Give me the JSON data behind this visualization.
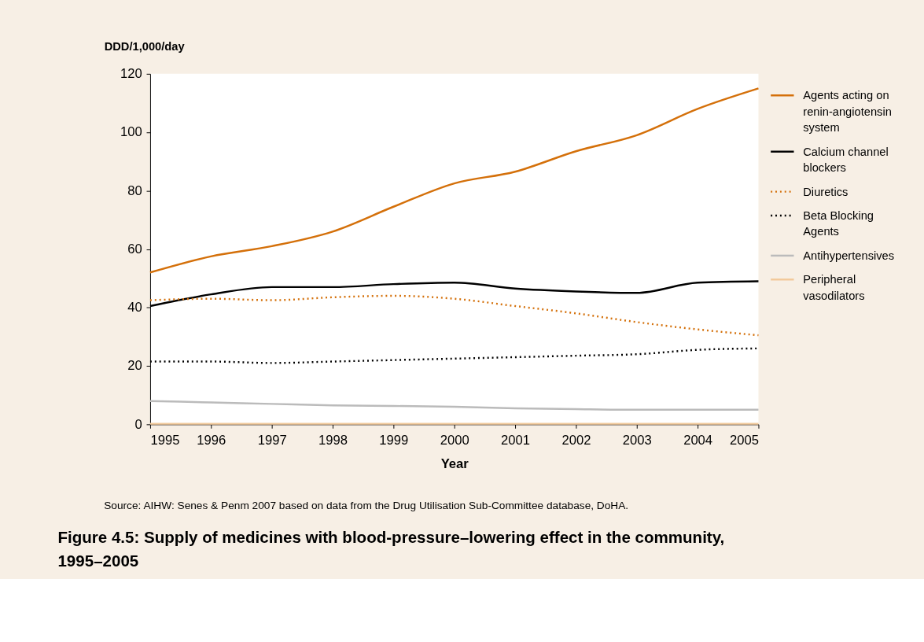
{
  "chart_data": {
    "type": "line",
    "title": "Figure 4.5: Supply of medicines with blood-pressure–lowering effect in the community, 1995–2005",
    "xlabel": "Year",
    "ylabel": "DDD/1,000/day",
    "x": [
      1995,
      1996,
      1997,
      1998,
      1999,
      2000,
      2001,
      2002,
      2003,
      2004,
      2005
    ],
    "xlim": [
      1995,
      2005
    ],
    "xticks": [
      1995,
      1996,
      1997,
      1998,
      1999,
      2000,
      2001,
      2002,
      2003,
      2004,
      2005
    ],
    "ylim": [
      0,
      120
    ],
    "yticks": [
      0,
      20,
      40,
      60,
      80,
      100,
      120
    ],
    "grid": false,
    "legend": "right",
    "marker": "none",
    "series": [
      {
        "name": "Agents acting on renin-angiotensin system",
        "color": "#d4700a",
        "line_style": "solid",
        "values": [
          52,
          57.5,
          61,
          66,
          74.5,
          82.5,
          86.5,
          93.5,
          99,
          108,
          115
        ]
      },
      {
        "name": "Calcium channel blockers",
        "color": "#000000",
        "line_style": "solid",
        "values": [
          40.5,
          44.5,
          47,
          47,
          48,
          48.5,
          46.5,
          45.5,
          45,
          48.5,
          49
        ]
      },
      {
        "name": "Diuretics",
        "color": "#d4700a",
        "line_style": "dotted",
        "values": [
          42.5,
          43,
          42.5,
          43.5,
          44,
          43,
          40.5,
          38,
          35,
          32.5,
          30.5
        ]
      },
      {
        "name": "Beta Blocking Agents",
        "color": "#000000",
        "line_style": "dotted",
        "values": [
          21.5,
          21.5,
          21,
          21.5,
          22,
          22.5,
          23,
          23.5,
          24,
          25.5,
          26
        ]
      },
      {
        "name": "Antihypertensives",
        "color": "#bbbbbb",
        "line_style": "solid",
        "values": [
          8,
          7.5,
          7,
          6.5,
          6.3,
          6,
          5.5,
          5.2,
          5,
          5,
          5
        ]
      },
      {
        "name": "Peripheral vasodilators",
        "color": "#f2c99a",
        "line_style": "solid",
        "values": [
          0.2,
          0.2,
          0.2,
          0.2,
          0.2,
          0.2,
          0.2,
          0.2,
          0.2,
          0.2,
          0.2
        ]
      }
    ],
    "annotations": [
      "Source: AIHW: Senes & Penm 2007 based on data from the Drug Utilisation Sub-Committee database, DoHA."
    ]
  }
}
